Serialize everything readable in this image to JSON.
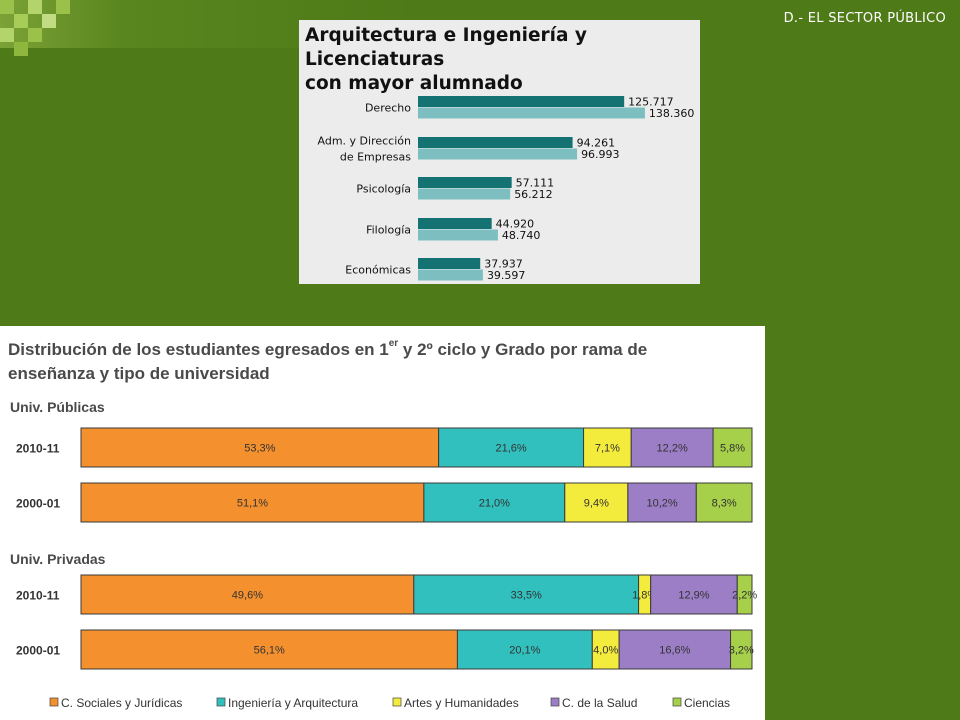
{
  "slide": {
    "title": "D.- EL SECTOR PÚBLICO"
  },
  "colors": {
    "background": "#4e7a17",
    "dark_teal": "#157272",
    "light_teal": "#7dbfc0",
    "orange": "#f4902e",
    "turquoise": "#31c0bd",
    "yellow": "#f4ec3c",
    "purple": "#9b7ec6",
    "lime": "#a6cf4a"
  },
  "chart_data": [
    {
      "type": "bar",
      "orientation": "horizontal",
      "title_line1": "Arquitectura e Ingeniería y Licenciaturas",
      "title_line2": "con mayor alumnado",
      "categories": [
        "Derecho",
        "Adm. y Dirección de Empresas",
        "Psicología",
        "Filología",
        "Económicas"
      ],
      "category_lines": [
        [
          "Derecho"
        ],
        [
          "Adm. y Dirección",
          "de Empresas"
        ],
        [
          "Psicología"
        ],
        [
          "Filología"
        ],
        [
          "Económicas"
        ]
      ],
      "series": [
        {
          "values": [
            125717,
            94261,
            57111,
            44920,
            37937
          ],
          "labels": [
            "125.717",
            "94.261",
            "57.111",
            "44.920",
            "37.937"
          ],
          "color": "#157272"
        },
        {
          "values": [
            138360,
            96993,
            56212,
            48740,
            39597
          ],
          "labels": [
            "138.360",
            "96.993",
            "56.212",
            "48.740",
            "39.597"
          ],
          "color": "#7dbfc0"
        }
      ]
    },
    {
      "type": "bar",
      "orientation": "horizontal",
      "stacked": true,
      "title_part1": "Distribución de los estudiantes egresados en 1",
      "title_sup1": "er",
      "title_part2": " y 2º ciclo y Grado por rama de",
      "title_line2": "enseñanza y tipo de universidad",
      "groups": [
        {
          "name": "Univ. Públicas",
          "rows": [
            {
              "label": "2010-11",
              "values": [
                53.3,
                21.6,
                7.1,
                12.2,
                5.8
              ],
              "texts": [
                "53,3%",
                "21,6%",
                "7,1%",
                "12,2%",
                "5,8%"
              ]
            },
            {
              "label": "2000-01",
              "values": [
                51.1,
                21.0,
                9.4,
                10.2,
                8.3
              ],
              "texts": [
                "51,1%",
                "21,0%",
                "9,4%",
                "10,2%",
                "8,3%"
              ]
            }
          ]
        },
        {
          "name": "Univ. Privadas",
          "rows": [
            {
              "label": "2010-11",
              "values": [
                49.6,
                33.5,
                1.8,
                12.9,
                2.2
              ],
              "texts": [
                "49,6%",
                "33,5%",
                "1,8%",
                "12,9%",
                "2,2%"
              ]
            },
            {
              "label": "2000-01",
              "values": [
                56.1,
                20.1,
                4.0,
                16.6,
                3.2
              ],
              "texts": [
                "56,1%",
                "20,1%",
                "4,0%",
                "16,6%",
                "3,2%"
              ]
            }
          ]
        }
      ],
      "series_names": [
        "C. Sociales y Jurídicas",
        "Ingeniería y Arquitectura",
        "Artes y Humanidades",
        "C. de la Salud",
        "Ciencias"
      ],
      "series_colors": [
        "#f4902e",
        "#31c0bd",
        "#f4ec3c",
        "#9b7ec6",
        "#a6cf4a"
      ],
      "legend": "bottom"
    }
  ]
}
